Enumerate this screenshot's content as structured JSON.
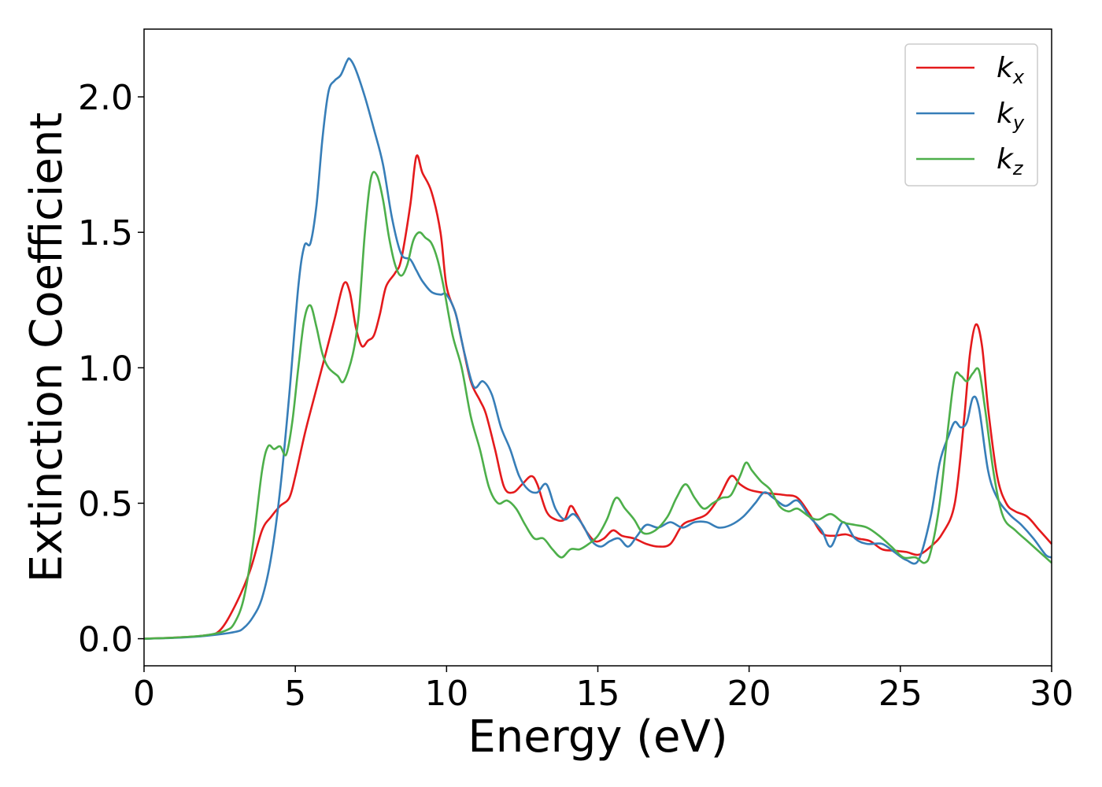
{
  "chart_data": {
    "type": "line",
    "title": "",
    "xlabel": "Energy (eV)",
    "ylabel": "Extinction Coefficient",
    "xlim": [
      0,
      30
    ],
    "ylim": [
      -0.1,
      2.25
    ],
    "xticks": [
      0,
      5,
      10,
      15,
      20,
      25,
      30
    ],
    "xtick_labels": [
      "0",
      "5",
      "10",
      "15",
      "20",
      "25",
      "30"
    ],
    "yticks": [
      0.0,
      0.5,
      1.0,
      1.5,
      2.0
    ],
    "ytick_labels": [
      "0.0",
      "0.5",
      "1.0",
      "1.5",
      "2.0"
    ],
    "grid": false,
    "legend_position": "top-right",
    "series": [
      {
        "name": "k",
        "subscript": "x",
        "color": "#e41a1c",
        "points": [
          [
            0,
            0
          ],
          [
            1,
            0.004
          ],
          [
            2,
            0.012
          ],
          [
            2.5,
            0.03
          ],
          [
            3,
            0.12
          ],
          [
            3.5,
            0.25
          ],
          [
            3.9,
            0.4
          ],
          [
            4.2,
            0.45
          ],
          [
            4.5,
            0.49
          ],
          [
            4.8,
            0.52
          ],
          [
            5.0,
            0.6
          ],
          [
            5.3,
            0.75
          ],
          [
            5.6,
            0.88
          ],
          [
            6.0,
            1.05
          ],
          [
            6.3,
            1.18
          ],
          [
            6.6,
            1.31
          ],
          [
            6.8,
            1.28
          ],
          [
            7.0,
            1.15
          ],
          [
            7.2,
            1.08
          ],
          [
            7.4,
            1.1
          ],
          [
            7.6,
            1.12
          ],
          [
            7.8,
            1.2
          ],
          [
            8.0,
            1.3
          ],
          [
            8.3,
            1.35
          ],
          [
            8.5,
            1.4
          ],
          [
            8.8,
            1.6
          ],
          [
            9.0,
            1.78
          ],
          [
            9.2,
            1.72
          ],
          [
            9.5,
            1.65
          ],
          [
            9.8,
            1.5
          ],
          [
            10.0,
            1.3
          ],
          [
            10.3,
            1.2
          ],
          [
            10.5,
            1.1
          ],
          [
            10.8,
            0.95
          ],
          [
            11.1,
            0.88
          ],
          [
            11.3,
            0.83
          ],
          [
            11.6,
            0.7
          ],
          [
            11.9,
            0.56
          ],
          [
            12.2,
            0.54
          ],
          [
            12.5,
            0.57
          ],
          [
            12.8,
            0.6
          ],
          [
            13.0,
            0.57
          ],
          [
            13.3,
            0.47
          ],
          [
            13.6,
            0.44
          ],
          [
            13.9,
            0.44
          ],
          [
            14.1,
            0.49
          ],
          [
            14.3,
            0.46
          ],
          [
            14.6,
            0.4
          ],
          [
            14.9,
            0.36
          ],
          [
            15.2,
            0.37
          ],
          [
            15.5,
            0.4
          ],
          [
            15.8,
            0.38
          ],
          [
            16.2,
            0.37
          ],
          [
            16.6,
            0.35
          ],
          [
            17.0,
            0.34
          ],
          [
            17.4,
            0.35
          ],
          [
            17.8,
            0.42
          ],
          [
            18.2,
            0.44
          ],
          [
            18.6,
            0.46
          ],
          [
            19.0,
            0.52
          ],
          [
            19.4,
            0.6
          ],
          [
            19.7,
            0.57
          ],
          [
            20.0,
            0.55
          ],
          [
            20.4,
            0.54
          ],
          [
            20.8,
            0.535
          ],
          [
            21.2,
            0.53
          ],
          [
            21.6,
            0.52
          ],
          [
            22.0,
            0.46
          ],
          [
            22.4,
            0.39
          ],
          [
            22.8,
            0.38
          ],
          [
            23.2,
            0.385
          ],
          [
            23.6,
            0.37
          ],
          [
            24.0,
            0.36
          ],
          [
            24.4,
            0.33
          ],
          [
            24.8,
            0.325
          ],
          [
            25.2,
            0.32
          ],
          [
            25.6,
            0.31
          ],
          [
            26.0,
            0.34
          ],
          [
            26.4,
            0.39
          ],
          [
            26.8,
            0.5
          ],
          [
            27.1,
            0.8
          ],
          [
            27.3,
            1.05
          ],
          [
            27.5,
            1.16
          ],
          [
            27.7,
            1.08
          ],
          [
            27.9,
            0.85
          ],
          [
            28.2,
            0.6
          ],
          [
            28.5,
            0.5
          ],
          [
            28.8,
            0.47
          ],
          [
            29.2,
            0.45
          ],
          [
            29.6,
            0.4
          ],
          [
            30,
            0.35
          ]
        ]
      },
      {
        "name": "k",
        "subscript": "y",
        "color": "#377eb8",
        "points": [
          [
            0,
            0
          ],
          [
            1,
            0.003
          ],
          [
            2,
            0.01
          ],
          [
            3,
            0.025
          ],
          [
            3.3,
            0.04
          ],
          [
            3.6,
            0.08
          ],
          [
            3.9,
            0.15
          ],
          [
            4.2,
            0.3
          ],
          [
            4.5,
            0.55
          ],
          [
            4.8,
            0.9
          ],
          [
            5.1,
            1.3
          ],
          [
            5.3,
            1.45
          ],
          [
            5.5,
            1.46
          ],
          [
            5.7,
            1.6
          ],
          [
            5.9,
            1.85
          ],
          [
            6.1,
            2.02
          ],
          [
            6.3,
            2.06
          ],
          [
            6.5,
            2.08
          ],
          [
            6.7,
            2.13
          ],
          [
            6.8,
            2.14
          ],
          [
            7.0,
            2.1
          ],
          [
            7.3,
            2.0
          ],
          [
            7.6,
            1.88
          ],
          [
            7.9,
            1.75
          ],
          [
            8.2,
            1.55
          ],
          [
            8.5,
            1.42
          ],
          [
            8.8,
            1.4
          ],
          [
            9.0,
            1.36
          ],
          [
            9.2,
            1.32
          ],
          [
            9.5,
            1.28
          ],
          [
            9.8,
            1.27
          ],
          [
            10.0,
            1.27
          ],
          [
            10.3,
            1.2
          ],
          [
            10.6,
            1.05
          ],
          [
            10.9,
            0.93
          ],
          [
            11.2,
            0.95
          ],
          [
            11.5,
            0.9
          ],
          [
            11.8,
            0.78
          ],
          [
            12.1,
            0.7
          ],
          [
            12.4,
            0.6
          ],
          [
            12.7,
            0.55
          ],
          [
            13.0,
            0.54
          ],
          [
            13.3,
            0.57
          ],
          [
            13.6,
            0.48
          ],
          [
            13.9,
            0.44
          ],
          [
            14.2,
            0.46
          ],
          [
            14.5,
            0.42
          ],
          [
            14.8,
            0.36
          ],
          [
            15.1,
            0.34
          ],
          [
            15.4,
            0.36
          ],
          [
            15.7,
            0.37
          ],
          [
            16.0,
            0.34
          ],
          [
            16.3,
            0.38
          ],
          [
            16.6,
            0.42
          ],
          [
            17.0,
            0.41
          ],
          [
            17.4,
            0.43
          ],
          [
            17.8,
            0.41
          ],
          [
            18.2,
            0.43
          ],
          [
            18.6,
            0.43
          ],
          [
            19.0,
            0.41
          ],
          [
            19.4,
            0.42
          ],
          [
            19.8,
            0.45
          ],
          [
            20.2,
            0.5
          ],
          [
            20.5,
            0.54
          ],
          [
            20.8,
            0.52
          ],
          [
            21.2,
            0.49
          ],
          [
            21.6,
            0.51
          ],
          [
            22.0,
            0.45
          ],
          [
            22.4,
            0.4
          ],
          [
            22.7,
            0.34
          ],
          [
            23.1,
            0.43
          ],
          [
            23.5,
            0.37
          ],
          [
            23.9,
            0.35
          ],
          [
            24.4,
            0.35
          ],
          [
            24.8,
            0.32
          ],
          [
            25.2,
            0.29
          ],
          [
            25.6,
            0.29
          ],
          [
            26.0,
            0.45
          ],
          [
            26.3,
            0.65
          ],
          [
            26.6,
            0.75
          ],
          [
            26.8,
            0.8
          ],
          [
            27.0,
            0.78
          ],
          [
            27.2,
            0.8
          ],
          [
            27.4,
            0.89
          ],
          [
            27.6,
            0.85
          ],
          [
            27.9,
            0.62
          ],
          [
            28.2,
            0.52
          ],
          [
            28.6,
            0.46
          ],
          [
            29.0,
            0.42
          ],
          [
            29.4,
            0.37
          ],
          [
            29.8,
            0.31
          ],
          [
            30,
            0.3
          ]
        ]
      },
      {
        "name": "k",
        "subscript": "z",
        "color": "#4daf4a",
        "points": [
          [
            0,
            0
          ],
          [
            1,
            0.004
          ],
          [
            2,
            0.012
          ],
          [
            2.7,
            0.03
          ],
          [
            3.0,
            0.06
          ],
          [
            3.3,
            0.15
          ],
          [
            3.6,
            0.35
          ],
          [
            3.9,
            0.62
          ],
          [
            4.1,
            0.71
          ],
          [
            4.3,
            0.7
          ],
          [
            4.5,
            0.71
          ],
          [
            4.7,
            0.68
          ],
          [
            4.9,
            0.8
          ],
          [
            5.1,
            1.0
          ],
          [
            5.3,
            1.18
          ],
          [
            5.5,
            1.23
          ],
          [
            5.7,
            1.15
          ],
          [
            5.9,
            1.05
          ],
          [
            6.1,
            1.0
          ],
          [
            6.4,
            0.97
          ],
          [
            6.6,
            0.95
          ],
          [
            6.9,
            1.05
          ],
          [
            7.1,
            1.2
          ],
          [
            7.3,
            1.5
          ],
          [
            7.5,
            1.7
          ],
          [
            7.7,
            1.71
          ],
          [
            7.9,
            1.62
          ],
          [
            8.1,
            1.48
          ],
          [
            8.3,
            1.38
          ],
          [
            8.5,
            1.34
          ],
          [
            8.7,
            1.38
          ],
          [
            8.9,
            1.47
          ],
          [
            9.1,
            1.5
          ],
          [
            9.3,
            1.48
          ],
          [
            9.5,
            1.46
          ],
          [
            9.7,
            1.4
          ],
          [
            9.9,
            1.3
          ],
          [
            10.2,
            1.12
          ],
          [
            10.5,
            1.0
          ],
          [
            10.8,
            0.82
          ],
          [
            11.1,
            0.7
          ],
          [
            11.4,
            0.56
          ],
          [
            11.7,
            0.5
          ],
          [
            12.0,
            0.51
          ],
          [
            12.3,
            0.48
          ],
          [
            12.6,
            0.42
          ],
          [
            12.9,
            0.37
          ],
          [
            13.2,
            0.37
          ],
          [
            13.5,
            0.33
          ],
          [
            13.8,
            0.3
          ],
          [
            14.1,
            0.33
          ],
          [
            14.4,
            0.33
          ],
          [
            14.7,
            0.35
          ],
          [
            15.0,
            0.38
          ],
          [
            15.3,
            0.44
          ],
          [
            15.6,
            0.52
          ],
          [
            15.9,
            0.48
          ],
          [
            16.2,
            0.44
          ],
          [
            16.5,
            0.39
          ],
          [
            16.9,
            0.4
          ],
          [
            17.3,
            0.45
          ],
          [
            17.6,
            0.52
          ],
          [
            17.9,
            0.57
          ],
          [
            18.2,
            0.52
          ],
          [
            18.5,
            0.48
          ],
          [
            18.8,
            0.5
          ],
          [
            19.1,
            0.52
          ],
          [
            19.4,
            0.53
          ],
          [
            19.7,
            0.6
          ],
          [
            19.9,
            0.65
          ],
          [
            20.1,
            0.62
          ],
          [
            20.4,
            0.58
          ],
          [
            20.7,
            0.55
          ],
          [
            21.0,
            0.49
          ],
          [
            21.3,
            0.47
          ],
          [
            21.6,
            0.48
          ],
          [
            22.0,
            0.45
          ],
          [
            22.3,
            0.44
          ],
          [
            22.7,
            0.46
          ],
          [
            23.1,
            0.43
          ],
          [
            23.5,
            0.42
          ],
          [
            23.9,
            0.41
          ],
          [
            24.3,
            0.38
          ],
          [
            24.7,
            0.34
          ],
          [
            25.1,
            0.3
          ],
          [
            25.5,
            0.3
          ],
          [
            25.8,
            0.28
          ],
          [
            26.0,
            0.32
          ],
          [
            26.3,
            0.5
          ],
          [
            26.6,
            0.8
          ],
          [
            26.8,
            0.97
          ],
          [
            27.0,
            0.97
          ],
          [
            27.2,
            0.95
          ],
          [
            27.4,
            0.98
          ],
          [
            27.6,
            0.99
          ],
          [
            27.8,
            0.85
          ],
          [
            28.1,
            0.6
          ],
          [
            28.4,
            0.45
          ],
          [
            28.8,
            0.4
          ],
          [
            29.2,
            0.36
          ],
          [
            29.6,
            0.32
          ],
          [
            30,
            0.28
          ]
        ]
      }
    ]
  }
}
